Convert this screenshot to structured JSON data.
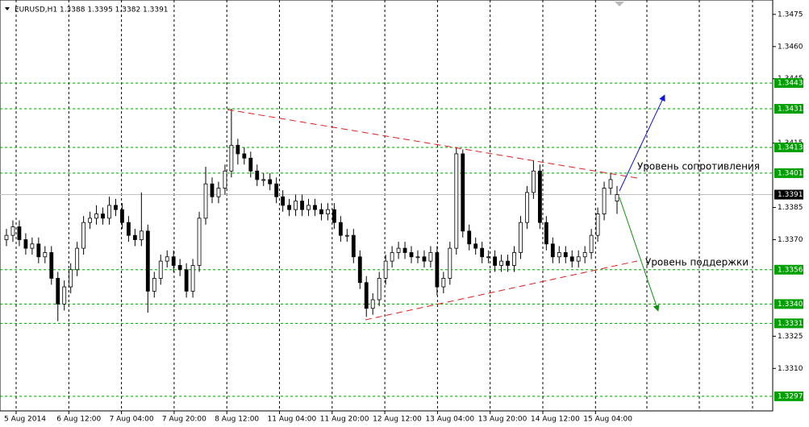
{
  "chart_data": {
    "type": "candlestick",
    "title": "EURUSD,H1  1.3388 1.3395 1.3382 1.3391",
    "ylim": [
      1.32902,
      1.34817
    ],
    "yticks": [
      1.3475,
      {
        "value": 1.346,
        "label": "1.3460"
      },
      1.3445,
      1.3415,
      1.3385,
      {
        "value": 1.337,
        "label": "1.3370"
      },
      1.3325,
      {
        "value": 1.331,
        "label": "1.3310"
      }
    ],
    "levels": [
      1.3443,
      1.3431,
      1.3413,
      1.3401,
      1.3356,
      {
        "value": 1.334,
        "label": "1.3340"
      },
      1.3331,
      1.3297
    ],
    "level_color": "#00a000",
    "current_price": 1.3391,
    "xticks": [
      "5 Aug 2014",
      "6 Aug 12:00",
      "7 Aug 04:00",
      "7 Aug 20:00",
      "8 Aug 12:00",
      "11 Aug 04:00",
      "11 Aug 20:00",
      "12 Aug 12:00",
      "13 Aug 04:00",
      "13 Aug 20:00",
      "14 Aug 12:00",
      "15 Aug 04:00"
    ],
    "annotations": [
      "Уровень сопротивления",
      "Уровень поддержки"
    ],
    "open": [
      1.337,
      1.3372,
      1.3376,
      1.337,
      1.3366,
      1.3368,
      1.3362,
      1.3364,
      1.3352,
      1.334,
      1.3348,
      1.3356,
      1.3366,
      1.3378,
      1.338,
      1.3382,
      1.338,
      1.3386,
      1.3384,
      1.3378,
      1.3372,
      1.337,
      1.3374,
      1.3346,
      1.3352,
      1.336,
      1.3362,
      1.3358,
      1.3356,
      1.3346,
      1.3358,
      1.338,
      1.3396,
      1.339,
      1.3394,
      1.3402,
      1.3414,
      1.341,
      1.3408,
      1.3402,
      1.3398,
      1.3398,
      1.3396,
      1.339,
      1.3386,
      1.3384,
      1.3388,
      1.3384,
      1.3386,
      1.3384,
      1.3382,
      1.3384,
      1.3378,
      1.3372,
      1.3372,
      1.3362,
      1.335,
      1.3338,
      1.3342,
      1.3352,
      1.336,
      1.3364,
      1.3366,
      1.3364,
      1.3362,
      1.3362,
      1.336,
      1.3364,
      1.3348,
      1.3352,
      1.3366,
      1.341,
      1.3374,
      1.3368,
      1.3366,
      1.3362,
      1.3362,
      1.3358,
      1.336,
      1.3358,
      1.3364,
      1.3378,
      1.3392,
      1.3402,
      1.3378,
      1.3368,
      1.3362,
      1.3364,
      1.3362,
      1.336,
      1.3362,
      1.3364,
      1.3372,
      1.3382,
      1.3394,
      1.3388
    ],
    "high": [
      1.3375,
      1.3379,
      1.3379,
      1.3373,
      1.3371,
      1.3371,
      1.3367,
      1.3367,
      1.3355,
      1.3351,
      1.3359,
      1.3369,
      1.3381,
      1.3383,
      1.3386,
      1.3385,
      1.339,
      1.3389,
      1.3387,
      1.3381,
      1.3375,
      1.3392,
      1.3377,
      1.3355,
      1.3363,
      1.3365,
      1.3365,
      1.3361,
      1.3359,
      1.3361,
      1.3383,
      1.3404,
      1.3399,
      1.3397,
      1.3405,
      1.3431,
      1.3417,
      1.3413,
      1.3411,
      1.3405,
      1.3401,
      1.3401,
      1.3399,
      1.3393,
      1.3389,
      1.3391,
      1.3391,
      1.3389,
      1.3389,
      1.3387,
      1.3387,
      1.3387,
      1.3381,
      1.3375,
      1.3375,
      1.3365,
      1.3353,
      1.3345,
      1.3355,
      1.3363,
      1.3367,
      1.3369,
      1.3369,
      1.3367,
      1.3365,
      1.3365,
      1.3367,
      1.3367,
      1.3355,
      1.3369,
      1.3413,
      1.3412,
      1.3377,
      1.3371,
      1.3369,
      1.3365,
      1.3365,
      1.3363,
      1.3363,
      1.3367,
      1.3381,
      1.3395,
      1.3407,
      1.3405,
      1.3381,
      1.3371,
      1.3367,
      1.3367,
      1.3365,
      1.3365,
      1.3367,
      1.3375,
      1.3385,
      1.3397,
      1.3401,
      1.3395
    ],
    "low": [
      1.3367,
      1.3369,
      1.3367,
      1.3363,
      1.3363,
      1.3359,
      1.3359,
      1.3349,
      1.3332,
      1.3337,
      1.3345,
      1.3353,
      1.3363,
      1.3375,
      1.3377,
      1.3377,
      1.3377,
      1.3381,
      1.3375,
      1.3369,
      1.3367,
      1.3367,
      1.3336,
      1.3343,
      1.3349,
      1.3357,
      1.3355,
      1.3353,
      1.3343,
      1.3343,
      1.3355,
      1.3377,
      1.3387,
      1.3387,
      1.3391,
      1.3399,
      1.3405,
      1.3405,
      1.3399,
      1.3395,
      1.3395,
      1.3393,
      1.3387,
      1.3383,
      1.3381,
      1.3381,
      1.3381,
      1.3381,
      1.3381,
      1.3379,
      1.3379,
      1.3375,
      1.3369,
      1.3369,
      1.3359,
      1.3347,
      1.3334,
      1.3335,
      1.3339,
      1.3349,
      1.3357,
      1.3361,
      1.3361,
      1.3359,
      1.3359,
      1.3357,
      1.3357,
      1.3344,
      1.3345,
      1.3349,
      1.3363,
      1.3371,
      1.3365,
      1.3363,
      1.3359,
      1.3359,
      1.3355,
      1.3355,
      1.3355,
      1.3355,
      1.3361,
      1.3375,
      1.3389,
      1.3375,
      1.3365,
      1.3359,
      1.3359,
      1.3359,
      1.3357,
      1.3357,
      1.3359,
      1.3361,
      1.3369,
      1.3379,
      1.3391,
      1.3382
    ],
    "close": [
      1.3372,
      1.3376,
      1.337,
      1.3366,
      1.3368,
      1.3362,
      1.3364,
      1.3352,
      1.334,
      1.3348,
      1.3356,
      1.3366,
      1.3378,
      1.338,
      1.3382,
      1.338,
      1.3386,
      1.3384,
      1.3378,
      1.3372,
      1.337,
      1.3374,
      1.3346,
      1.3352,
      1.336,
      1.3362,
      1.3358,
      1.3356,
      1.3346,
      1.3358,
      1.338,
      1.3396,
      1.339,
      1.3394,
      1.3402,
      1.3414,
      1.341,
      1.3408,
      1.3402,
      1.3398,
      1.3398,
      1.3396,
      1.339,
      1.3386,
      1.3384,
      1.3388,
      1.3384,
      1.3386,
      1.3384,
      1.3382,
      1.3384,
      1.3378,
      1.3372,
      1.3372,
      1.3362,
      1.335,
      1.3338,
      1.3342,
      1.3352,
      1.336,
      1.3364,
      1.3366,
      1.3364,
      1.3362,
      1.3362,
      1.336,
      1.3364,
      1.3348,
      1.3352,
      1.3366,
      1.341,
      1.3374,
      1.3368,
      1.3366,
      1.3362,
      1.3362,
      1.3358,
      1.336,
      1.3358,
      1.3364,
      1.3378,
      1.3392,
      1.3402,
      1.3378,
      1.3368,
      1.3362,
      1.3364,
      1.3362,
      1.336,
      1.3362,
      1.3364,
      1.3372,
      1.3382,
      1.3394,
      1.3398,
      1.3391
    ]
  }
}
